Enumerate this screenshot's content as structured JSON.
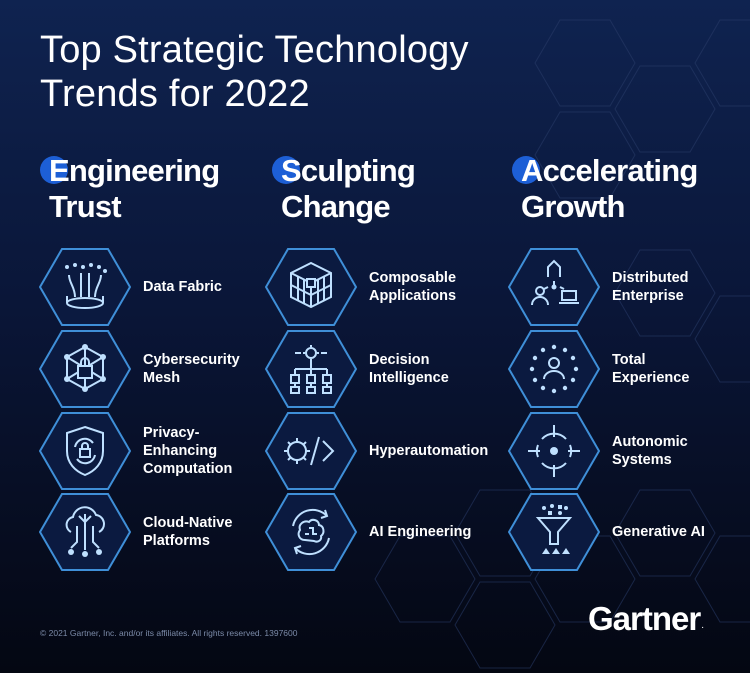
{
  "title": {
    "line1": "Top Strategic Technology",
    "line2": "Trends for 2022"
  },
  "columns": [
    {
      "heading": {
        "initial": "E",
        "line1": "Engineering",
        "line2": "Trust"
      },
      "items": [
        {
          "label": "Data Fabric",
          "icon": "data-fabric-icon"
        },
        {
          "label": "Cybersecurity\nMesh",
          "icon": "cybersecurity-mesh-icon"
        },
        {
          "label": "Privacy-\nEnhancing\nComputation",
          "icon": "privacy-shield-icon"
        },
        {
          "label": "Cloud-Native\nPlatforms",
          "icon": "cloud-native-icon"
        }
      ]
    },
    {
      "heading": {
        "initial": "S",
        "line1": "Sculpting",
        "line2": "Change"
      },
      "items": [
        {
          "label": "Composable\nApplications",
          "icon": "composable-cube-icon"
        },
        {
          "label": "Decision\nIntelligence",
          "icon": "decision-tree-icon"
        },
        {
          "label": "Hyperautomation",
          "icon": "hyperautomation-gear-icon"
        },
        {
          "label": "AI Engineering",
          "icon": "ai-brain-cycle-icon"
        }
      ]
    },
    {
      "heading": {
        "initial": "A",
        "line1": "Accelerating",
        "line2": "Growth"
      },
      "items": [
        {
          "label": "Distributed\nEnterprise",
          "icon": "distributed-enterprise-icon"
        },
        {
          "label": "Total\nExperience",
          "icon": "total-experience-icon"
        },
        {
          "label": "Autonomic\nSystems",
          "icon": "autonomic-target-icon"
        },
        {
          "label": "Generative AI",
          "icon": "generative-funnel-icon"
        }
      ]
    }
  ],
  "footer": "© 2021 Gartner, Inc. and/or its affiliates. All rights reserved. 1397600",
  "logo": {
    "text": "Gartner",
    "mark": "."
  },
  "colors": {
    "accent": "#1d5fd6",
    "hex_stroke": "#3f8fd8",
    "icon": "#bfe0ff",
    "background_top": "#0f2350",
    "background_bottom": "#040712"
  }
}
